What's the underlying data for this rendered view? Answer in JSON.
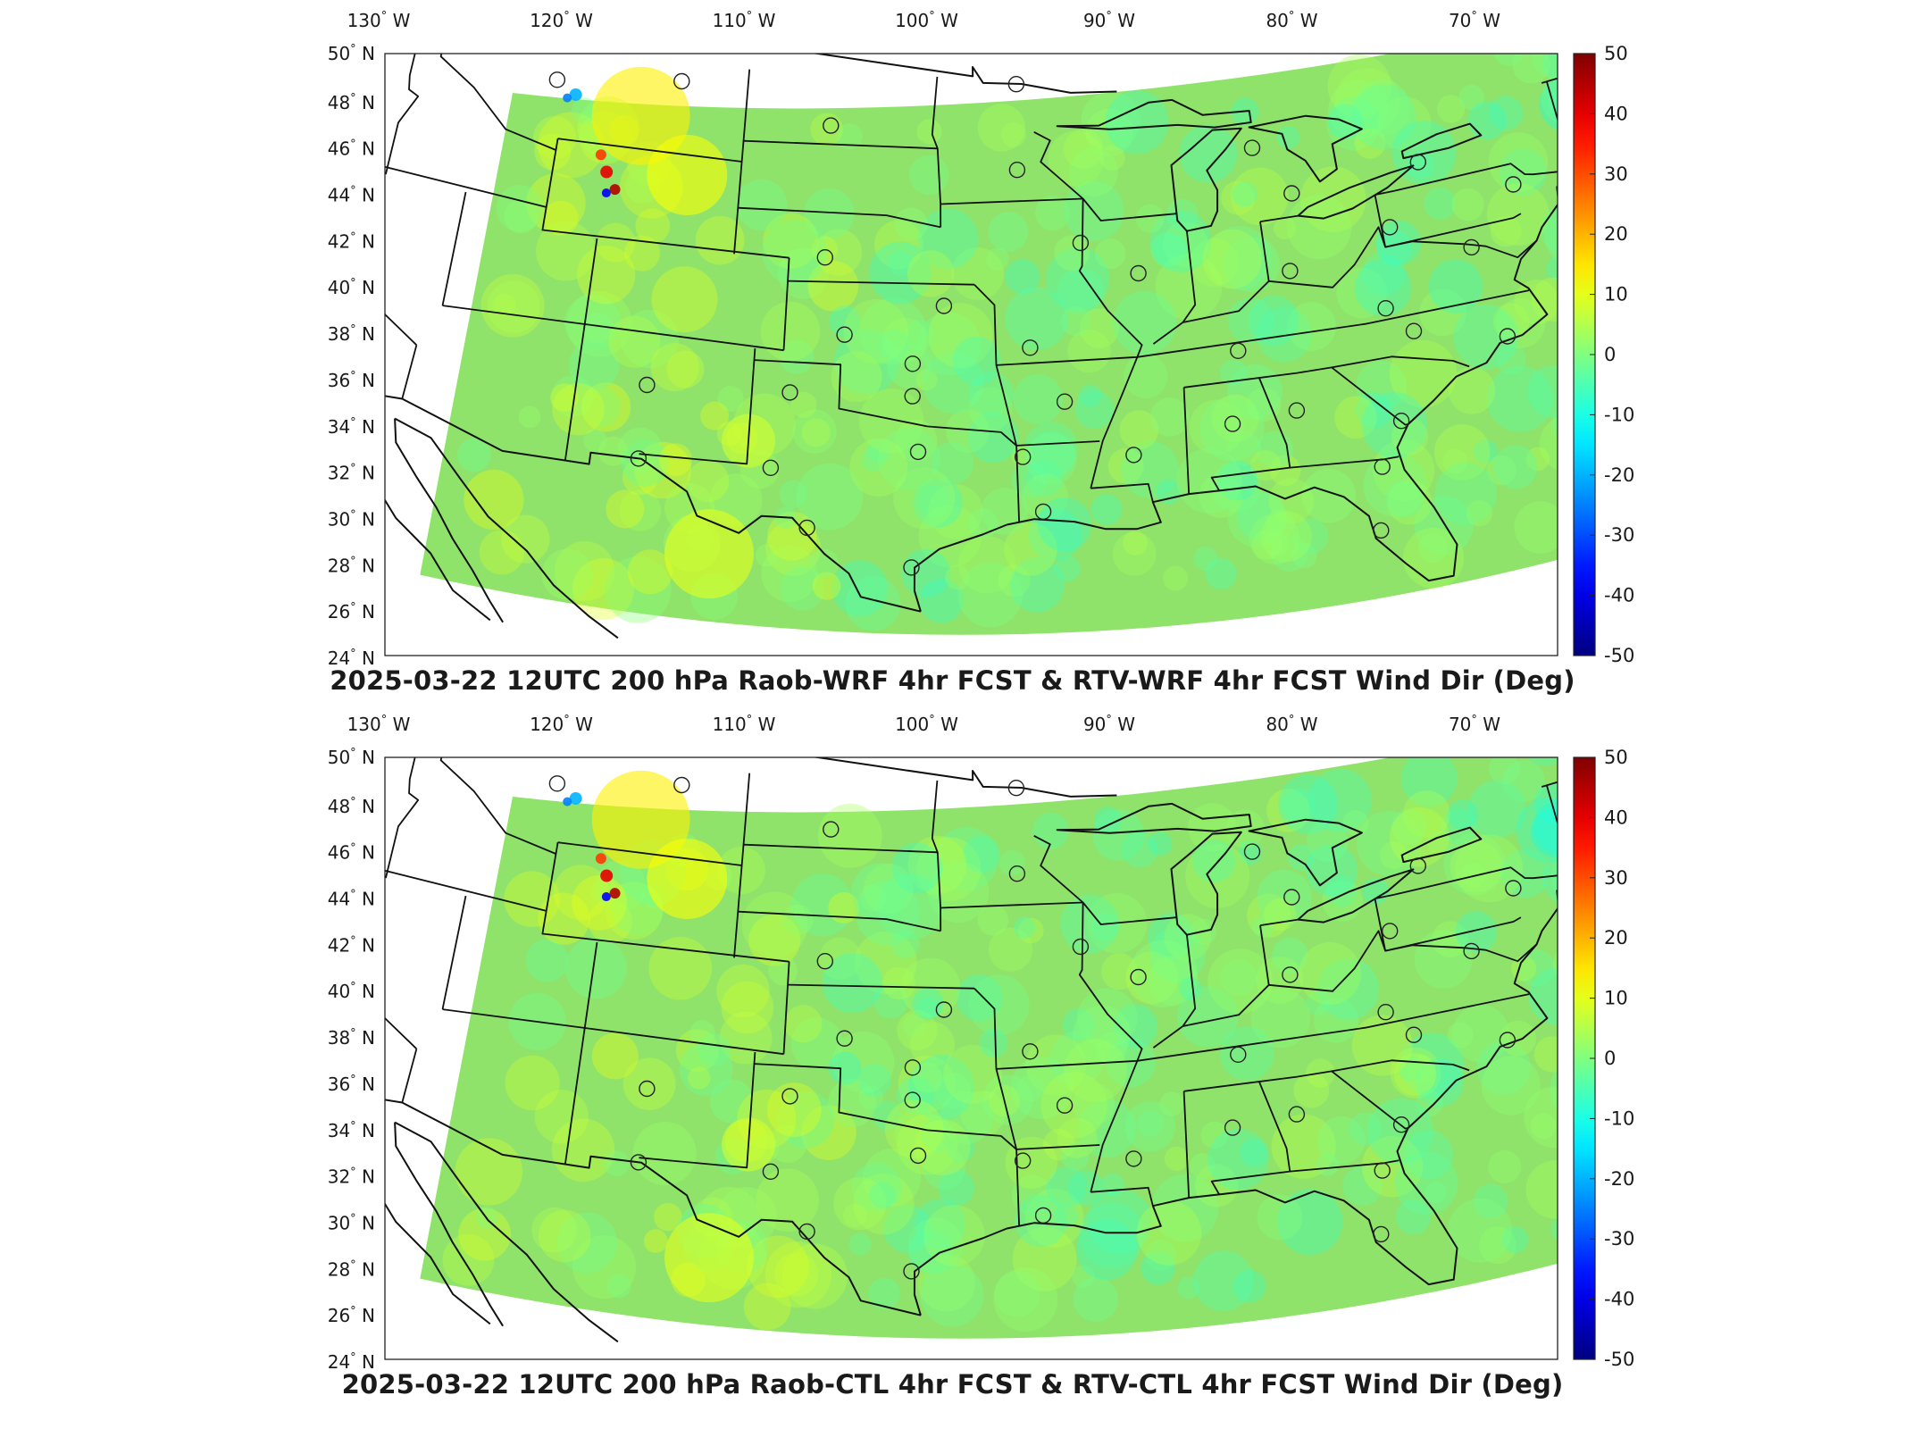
{
  "panels": [
    {
      "title": "2025-03-22 12UTC 200 hPa Raob-WRF 4hr FCST & RTV-WRF 4hr FCST Wind Dir (Deg)"
    },
    {
      "title": "2025-03-22 12UTC 200 hPa Raob-CTL 4hr FCST & RTV-CTL 4hr FCST Wind Dir (Deg)"
    }
  ],
  "longitude_labels": [
    {
      "deg": "130",
      "hemi": "W",
      "lon": -130
    },
    {
      "deg": "120",
      "hemi": "W",
      "lon": -120
    },
    {
      "deg": "110",
      "hemi": "W",
      "lon": -110
    },
    {
      "deg": "100",
      "hemi": "W",
      "lon": -100
    },
    {
      "deg": "90",
      "hemi": "W",
      "lon": -90
    },
    {
      "deg": "80",
      "hemi": "W",
      "lon": -80
    },
    {
      "deg": "70",
      "hemi": "W",
      "lon": -70
    }
  ],
  "latitude_labels": [
    {
      "deg": "50",
      "hemi": "N",
      "lat": 50
    },
    {
      "deg": "48",
      "hemi": "N",
      "lat": 48
    },
    {
      "deg": "46",
      "hemi": "N",
      "lat": 46
    },
    {
      "deg": "44",
      "hemi": "N",
      "lat": 44
    },
    {
      "deg": "42",
      "hemi": "N",
      "lat": 42
    },
    {
      "deg": "40",
      "hemi": "N",
      "lat": 40
    },
    {
      "deg": "38",
      "hemi": "N",
      "lat": 38
    },
    {
      "deg": "36",
      "hemi": "N",
      "lat": 36
    },
    {
      "deg": "34",
      "hemi": "N",
      "lat": 34
    },
    {
      "deg": "32",
      "hemi": "N",
      "lat": 32
    },
    {
      "deg": "30",
      "hemi": "N",
      "lat": 30
    },
    {
      "deg": "28",
      "hemi": "N",
      "lat": 28
    },
    {
      "deg": "26",
      "hemi": "N",
      "lat": 26
    },
    {
      "deg": "24",
      "hemi": "N",
      "lat": 24
    }
  ],
  "colorbar": {
    "min": -50,
    "max": 50,
    "ticks": [
      "50",
      "40",
      "30",
      "20",
      "10",
      "0",
      "-10",
      "-20",
      "-30",
      "-40",
      "-50"
    ],
    "colormap": "jet"
  },
  "field": {
    "base_color": "#8fe36a",
    "anomaly_colors": [
      "#f5f23c",
      "#ff7a1a",
      "#d9201a",
      "#1a4cff",
      "#3ac8ff"
    ]
  },
  "stations": [
    {
      "lon": -111.4,
      "lat": 47.5
    },
    {
      "lon": -106.6,
      "lat": 48.2
    },
    {
      "lon": -100.7,
      "lat": 46.8
    },
    {
      "lon": -93.5,
      "lat": 48.6
    },
    {
      "lon": -93.6,
      "lat": 44.9
    },
    {
      "lon": -84.7,
      "lat": 44.9
    },
    {
      "lon": -83.5,
      "lat": 42.7
    },
    {
      "lon": -78.7,
      "lat": 43.0
    },
    {
      "lon": -70.2,
      "lat": 44.0
    },
    {
      "lon": -100.7,
      "lat": 41.1
    },
    {
      "lon": -96.4,
      "lat": 39.1
    },
    {
      "lon": -91.4,
      "lat": 41.6
    },
    {
      "lon": -89.4,
      "lat": 40.1
    },
    {
      "lon": -84.0,
      "lat": 39.4
    },
    {
      "lon": -80.2,
      "lat": 40.5
    },
    {
      "lon": -77.5,
      "lat": 38.9
    },
    {
      "lon": -75.5,
      "lat": 41.1
    },
    {
      "lon": -106.6,
      "lat": 35.0
    },
    {
      "lon": -101.7,
      "lat": 35.2
    },
    {
      "lon": -97.5,
      "lat": 35.2
    },
    {
      "lon": -97.5,
      "lat": 36.6
    },
    {
      "lon": -99.9,
      "lat": 37.8
    },
    {
      "lon": -93.4,
      "lat": 37.2
    },
    {
      "lon": -92.3,
      "lat": 34.8
    },
    {
      "lon": -86.2,
      "lat": 36.3
    },
    {
      "lon": -80.9,
      "lat": 37.1
    },
    {
      "lon": -80.1,
      "lat": 35.9
    },
    {
      "lon": -77.0,
      "lat": 34.8
    },
    {
      "lon": -106.6,
      "lat": 31.8
    },
    {
      "lon": -102.2,
      "lat": 31.9
    },
    {
      "lon": -97.3,
      "lat": 32.8
    },
    {
      "lon": -93.8,
      "lat": 32.5
    },
    {
      "lon": -90.1,
      "lat": 32.3
    },
    {
      "lon": -86.7,
      "lat": 33.2
    },
    {
      "lon": -84.5,
      "lat": 33.4
    },
    {
      "lon": -81.1,
      "lat": 32.2
    },
    {
      "lon": -100.9,
      "lat": 29.4
    },
    {
      "lon": -97.5,
      "lat": 27.8
    },
    {
      "lon": -93.2,
      "lat": 30.1
    },
    {
      "lon": -82.0,
      "lat": 30.4
    },
    {
      "lon": -82.4,
      "lat": 27.7
    }
  ]
}
